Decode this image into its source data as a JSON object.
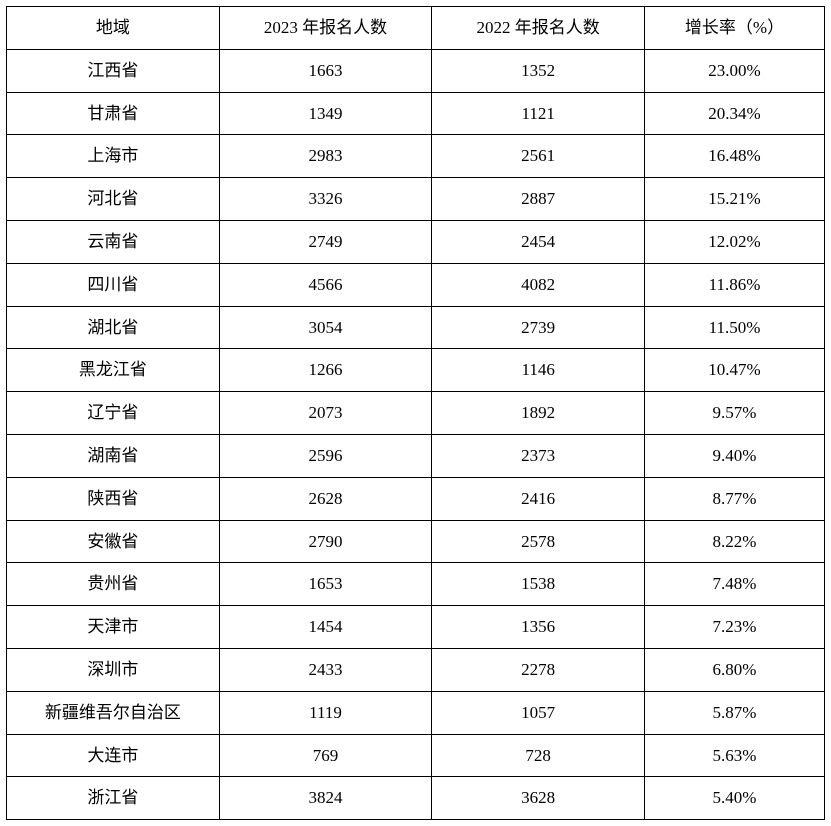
{
  "table": {
    "columns": [
      {
        "label": "地域",
        "class": "col-region"
      },
      {
        "label": "2023 年报名人数",
        "class": "col-2023"
      },
      {
        "label": "2022 年报名人数",
        "class": "col-2022"
      },
      {
        "label": "增长率（%）",
        "class": "col-growth"
      }
    ],
    "rows": [
      [
        "江西省",
        "1663",
        "1352",
        "23.00%"
      ],
      [
        "甘肃省",
        "1349",
        "1121",
        "20.34%"
      ],
      [
        "上海市",
        "2983",
        "2561",
        "16.48%"
      ],
      [
        "河北省",
        "3326",
        "2887",
        "15.21%"
      ],
      [
        "云南省",
        "2749",
        "2454",
        "12.02%"
      ],
      [
        "四川省",
        "4566",
        "4082",
        "11.86%"
      ],
      [
        "湖北省",
        "3054",
        "2739",
        "11.50%"
      ],
      [
        "黑龙江省",
        "1266",
        "1146",
        "10.47%"
      ],
      [
        "辽宁省",
        "2073",
        "1892",
        "9.57%"
      ],
      [
        "湖南省",
        "2596",
        "2373",
        "9.40%"
      ],
      [
        "陕西省",
        "2628",
        "2416",
        "8.77%"
      ],
      [
        "安徽省",
        "2790",
        "2578",
        "8.22%"
      ],
      [
        "贵州省",
        "1653",
        "1538",
        "7.48%"
      ],
      [
        "天津市",
        "1454",
        "1356",
        "7.23%"
      ],
      [
        "深圳市",
        "2433",
        "2278",
        "6.80%"
      ],
      [
        "新疆维吾尔自治区",
        "1119",
        "1057",
        "5.87%"
      ],
      [
        "大连市",
        "769",
        "728",
        "5.63%"
      ],
      [
        "浙江省",
        "3824",
        "3628",
        "5.40%"
      ]
    ],
    "styling": {
      "border_color": "#000000",
      "background_color": "#ffffff",
      "text_color": "#000000",
      "font_size": 17,
      "font_family": "SimSun",
      "cell_padding_v": 9,
      "cell_padding_h": 4,
      "text_align": "center"
    }
  }
}
